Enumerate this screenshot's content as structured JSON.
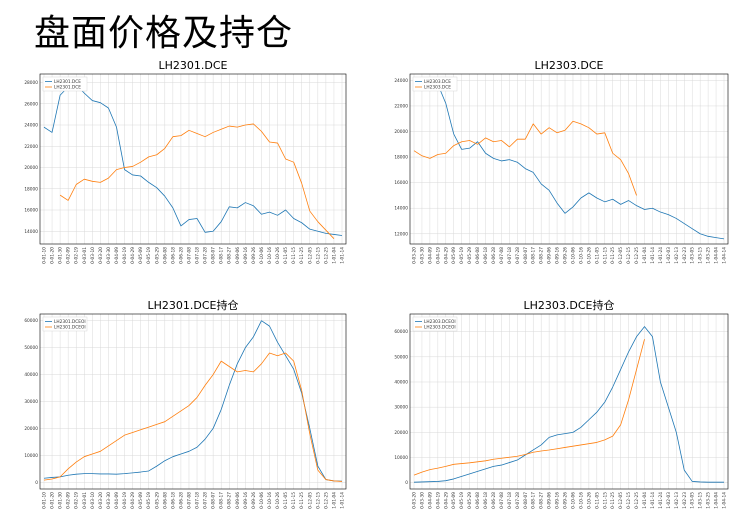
{
  "slide": {
    "title": "盘面价格及持仓"
  },
  "colors": {
    "series_a": "#1f77b4",
    "series_b": "#ff7f0e",
    "grid": "#d9d9d9"
  },
  "chart_data": [
    {
      "type": "line",
      "title": "LH2301.DCE",
      "grid": true,
      "legend": "top-left",
      "ylim": [
        12800,
        28800
      ],
      "yticks": [
        14000,
        16000,
        18000,
        20000,
        22000,
        24000,
        26000,
        28000
      ],
      "xticks": [
        "0-01-10",
        "0-01-20",
        "0-01-30",
        "0-02-09",
        "0-02-19",
        "0-03-01",
        "0-03-10",
        "0-03-20",
        "0-03-30",
        "0-04-09",
        "0-04-19",
        "0-04-29",
        "0-05-09",
        "0-05-19",
        "0-05-29",
        "0-06-08",
        "0-06-18",
        "0-06-28",
        "0-07-08",
        "0-07-18",
        "0-07-28",
        "0-08-07",
        "0-08-17",
        "0-08-27",
        "0-09-06",
        "0-09-16",
        "0-09-26",
        "0-10-06",
        "0-10-16",
        "0-10-26",
        "0-11-05",
        "0-11-15",
        "0-11-25",
        "0-12-05",
        "0-12-15",
        "0-12-25",
        "1-01-04",
        "1-01-14"
      ],
      "x_count": 38,
      "series": [
        {
          "name": "LH2301.DCE",
          "x": [
            0,
            1,
            2,
            3,
            4,
            5,
            6,
            7,
            8,
            9,
            10,
            11,
            12,
            13,
            14,
            15,
            16,
            17,
            18,
            19,
            20,
            21,
            22,
            23,
            24,
            25,
            26,
            27,
            28,
            29,
            30,
            31,
            32,
            33,
            34,
            35,
            36,
            37
          ],
          "values": [
            23800,
            23300,
            26800,
            27600,
            27800,
            27000,
            26300,
            26100,
            25600,
            23800,
            19800,
            19300,
            19200,
            18600,
            18100,
            17300,
            16200,
            14500,
            15100,
            15200,
            13900,
            14000,
            14900,
            16300,
            16200,
            16700,
            16400,
            15600,
            15800,
            15500,
            16000,
            15200,
            14800,
            14200,
            14000,
            13800,
            13700,
            13600
          ]
        },
        {
          "name": "LH2301.DCE",
          "x": [
            2,
            3,
            4,
            5,
            6,
            7,
            8,
            9,
            10,
            11,
            12,
            13,
            14,
            15,
            16,
            17,
            18,
            19,
            20,
            21,
            22,
            23,
            24,
            25,
            26,
            27,
            28,
            29,
            30,
            31,
            32,
            33,
            34,
            35,
            36
          ],
          "values": [
            17400,
            16900,
            18400,
            18900,
            18700,
            18600,
            19000,
            19800,
            20000,
            20100,
            20500,
            21000,
            21200,
            21800,
            22900,
            23000,
            23500,
            23200,
            22900,
            23300,
            23600,
            23900,
            23800,
            24000,
            24100,
            23400,
            22400,
            22300,
            20800,
            20500,
            18500,
            15900,
            14900,
            14100,
            13300
          ]
        }
      ]
    },
    {
      "type": "line",
      "title": "LH2303.DCE",
      "grid": true,
      "legend": "top-left",
      "ylim": [
        11200,
        24500
      ],
      "yticks": [
        12000,
        14000,
        16000,
        18000,
        20000,
        22000,
        24000
      ],
      "xticks": [
        "0-03-20",
        "0-03-30",
        "0-04-09",
        "0-04-19",
        "0-04-29",
        "0-05-09",
        "0-05-19",
        "0-05-29",
        "0-06-08",
        "0-06-18",
        "0-06-28",
        "0-07-08",
        "0-07-18",
        "0-07-28",
        "0-08-07",
        "0-08-17",
        "0-08-27",
        "0-09-06",
        "0-09-16",
        "0-09-26",
        "0-10-06",
        "0-10-16",
        "0-10-26",
        "0-11-05",
        "0-11-15",
        "0-11-25",
        "0-12-05",
        "0-12-15",
        "0-12-25",
        "1-01-04",
        "1-01-14",
        "1-01-24",
        "1-02-03",
        "1-02-13",
        "1-02-23",
        "1-03-05",
        "1-03-15",
        "1-03-25",
        "1-04-04",
        "1-04-14"
      ],
      "x_count": 40,
      "series": [
        {
          "name": "LH2303.DCE",
          "x": [
            0,
            1,
            2,
            3,
            4,
            5,
            6,
            7,
            8,
            9,
            10,
            11,
            12,
            13,
            14,
            15,
            16,
            17,
            18,
            19,
            20,
            21,
            22,
            23,
            24,
            25,
            26,
            27,
            28,
            29,
            30,
            31,
            32,
            33,
            34,
            35,
            36,
            37,
            38,
            39
          ],
          "values": [
            23800,
            23600,
            23500,
            23700,
            22200,
            19800,
            18600,
            18700,
            19200,
            18300,
            17900,
            17700,
            17800,
            17600,
            17100,
            16800,
            15900,
            15400,
            14400,
            13600,
            14100,
            14800,
            15200,
            14800,
            14500,
            14700,
            14300,
            14600,
            14200,
            13900,
            14000,
            13700,
            13500,
            13200,
            12800,
            12400,
            12000,
            11800,
            11700,
            11600
          ]
        },
        {
          "name": "LH2303.DCE",
          "x": [
            0,
            1,
            2,
            3,
            4,
            5,
            6,
            7,
            8,
            9,
            10,
            11,
            12,
            13,
            14,
            15,
            16,
            17,
            18,
            19,
            20,
            21,
            22,
            23,
            24,
            25,
            26,
            27,
            28
          ],
          "values": [
            18500,
            18100,
            17900,
            18200,
            18300,
            18900,
            19200,
            19300,
            19000,
            19500,
            19200,
            19300,
            18800,
            19400,
            19400,
            20600,
            19800,
            20300,
            19900,
            20100,
            20800,
            20600,
            20300,
            19800,
            19900,
            18300,
            17800,
            16700,
            15000
          ]
        }
      ]
    },
    {
      "type": "line",
      "title": "LH2301.DCE持仓",
      "grid": true,
      "legend": "top-left",
      "ylim": [
        -2500,
        62500
      ],
      "yticks": [
        0,
        10000,
        20000,
        30000,
        40000,
        50000,
        60000
      ],
      "xticks": [
        "0-01-10",
        "0-01-20",
        "0-01-30",
        "0-02-09",
        "0-02-19",
        "0-03-01",
        "0-03-10",
        "0-03-20",
        "0-03-30",
        "0-04-09",
        "0-04-19",
        "0-04-29",
        "0-05-09",
        "0-05-19",
        "0-05-29",
        "0-06-08",
        "0-06-18",
        "0-06-28",
        "0-07-08",
        "0-07-18",
        "0-07-28",
        "0-08-07",
        "0-08-17",
        "0-08-27",
        "0-09-06",
        "0-09-16",
        "0-09-26",
        "0-10-06",
        "0-10-16",
        "0-10-26",
        "0-11-05",
        "0-11-15",
        "0-11-25",
        "0-12-05",
        "0-12-15",
        "0-12-25",
        "1-01-04",
        "1-01-14"
      ],
      "x_count": 38,
      "series": [
        {
          "name": "LH2301.DCEOI",
          "x": [
            0,
            1,
            2,
            3,
            4,
            5,
            6,
            7,
            8,
            9,
            10,
            11,
            12,
            13,
            14,
            15,
            16,
            17,
            18,
            19,
            20,
            21,
            22,
            23,
            24,
            25,
            26,
            27,
            28,
            29,
            30,
            31,
            32,
            33,
            34,
            35,
            36,
            37
          ],
          "values": [
            1500,
            1800,
            2000,
            2600,
            3000,
            3200,
            3200,
            3100,
            3100,
            3000,
            3200,
            3500,
            3800,
            4200,
            6000,
            8000,
            9500,
            10500,
            11500,
            13000,
            16000,
            20000,
            27000,
            36000,
            44000,
            50000,
            54000,
            60000,
            58000,
            52000,
            47000,
            42000,
            33000,
            20000,
            6000,
            1000,
            500,
            400
          ]
        },
        {
          "name": "LH2301.DCEOI",
          "x": [
            0,
            1,
            2,
            3,
            4,
            5,
            6,
            7,
            8,
            9,
            10,
            11,
            12,
            13,
            14,
            15,
            16,
            17,
            18,
            19,
            20,
            21,
            22,
            23,
            24,
            25,
            26,
            27,
            28,
            29,
            30,
            31,
            32,
            33,
            34,
            35,
            36,
            37
          ],
          "values": [
            800,
            1200,
            2000,
            5000,
            7500,
            9500,
            10500,
            11500,
            13500,
            15500,
            17500,
            18500,
            19500,
            20500,
            21500,
            22500,
            24500,
            26500,
            28500,
            31500,
            36000,
            40000,
            45000,
            43000,
            41000,
            41500,
            41000,
            44000,
            48000,
            47000,
            48000,
            45000,
            34000,
            18000,
            4500,
            1000,
            500,
            300
          ]
        }
      ]
    },
    {
      "type": "line",
      "title": "LH2303.DCE持仓",
      "grid": true,
      "legend": "top-left",
      "ylim": [
        -2500,
        67000
      ],
      "yticks": [
        0,
        10000,
        20000,
        30000,
        40000,
        50000,
        60000
      ],
      "xticks": [
        "0-03-20",
        "0-03-30",
        "0-04-09",
        "0-04-19",
        "0-04-29",
        "0-05-09",
        "0-05-19",
        "0-05-29",
        "0-06-08",
        "0-06-18",
        "0-06-28",
        "0-07-08",
        "0-07-18",
        "0-07-28",
        "0-08-07",
        "0-08-17",
        "0-08-27",
        "0-09-06",
        "0-09-16",
        "0-09-26",
        "0-10-06",
        "0-10-16",
        "0-10-26",
        "0-11-05",
        "0-11-15",
        "0-11-25",
        "0-12-05",
        "0-12-15",
        "0-12-25",
        "1-01-04",
        "1-01-14",
        "1-01-24",
        "1-02-03",
        "1-02-13",
        "1-02-23",
        "1-03-05",
        "1-03-15",
        "1-03-25",
        "1-04-04",
        "1-04-14"
      ],
      "x_count": 40,
      "series": [
        {
          "name": "LH2303.DCEOI",
          "x": [
            0,
            1,
            2,
            3,
            4,
            5,
            6,
            7,
            8,
            9,
            10,
            11,
            12,
            13,
            14,
            15,
            16,
            17,
            18,
            19,
            20,
            21,
            22,
            23,
            24,
            25,
            26,
            27,
            28,
            29,
            30,
            31,
            32,
            33,
            34,
            35,
            36,
            37,
            38,
            39
          ],
          "values": [
            200,
            300,
            400,
            500,
            800,
            1500,
            2500,
            3500,
            4500,
            5500,
            6500,
            7000,
            8000,
            9000,
            11000,
            13000,
            15000,
            18000,
            19000,
            19500,
            20000,
            22000,
            25000,
            28000,
            32000,
            38000,
            45000,
            52000,
            58000,
            62000,
            58000,
            40000,
            30000,
            20000,
            5000,
            500,
            300,
            200,
            200,
            200
          ]
        },
        {
          "name": "LH2303.DCEOI",
          "x": [
            0,
            1,
            2,
            3,
            4,
            5,
            6,
            7,
            8,
            9,
            10,
            11,
            12,
            13,
            14,
            15,
            16,
            17,
            18,
            19,
            20,
            21,
            22,
            23,
            24,
            25,
            26,
            27,
            28,
            29
          ],
          "values": [
            3000,
            4200,
            5200,
            5800,
            6500,
            7300,
            7600,
            7900,
            8300,
            8700,
            9300,
            9700,
            10100,
            10500,
            11200,
            12100,
            12600,
            13000,
            13500,
            14000,
            14500,
            15000,
            15500,
            16000,
            17000,
            18500,
            23000,
            33000,
            45000,
            57000
          ]
        }
      ]
    }
  ]
}
